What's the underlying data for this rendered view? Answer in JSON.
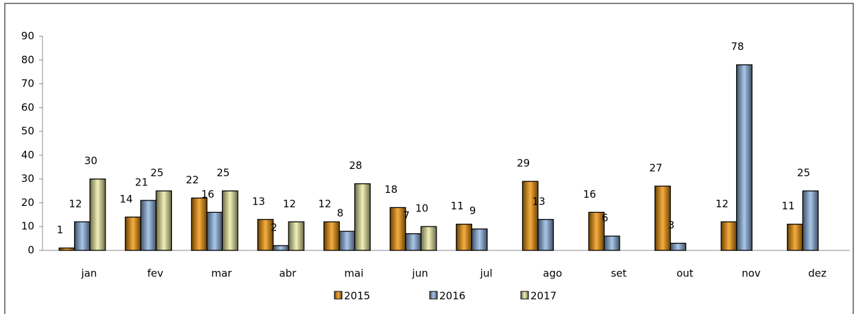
{
  "chart_data": {
    "type": "bar",
    "categories": [
      "jan",
      "fev",
      "mar",
      "abr",
      "mai",
      "jun",
      "jul",
      "ago",
      "set",
      "out",
      "nov",
      "dez"
    ],
    "series": [
      {
        "name": "2015",
        "color": "#f39200",
        "values": [
          1,
          14,
          22,
          13,
          12,
          18,
          11,
          29,
          16,
          27,
          12,
          11
        ]
      },
      {
        "name": "2016",
        "color": "#8db4e2",
        "values": [
          12,
          21,
          16,
          2,
          8,
          7,
          9,
          13,
          6,
          3,
          78,
          25
        ]
      },
      {
        "name": "2017",
        "color": "#eeeca1",
        "values": [
          30,
          25,
          25,
          12,
          28,
          10,
          null,
          null,
          null,
          null,
          null,
          null
        ]
      }
    ],
    "ylim": [
      0,
      90
    ],
    "yticks": [
      0,
      10,
      20,
      30,
      40,
      50,
      60,
      70,
      80,
      90
    ],
    "grid": false,
    "legend": "bottom"
  }
}
